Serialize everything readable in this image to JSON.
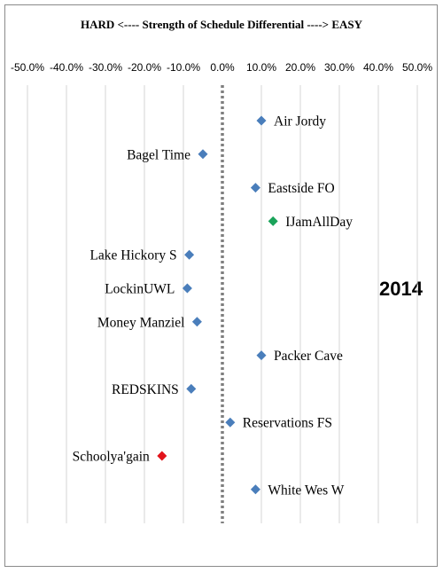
{
  "title": "HARD <----  Strength of Schedule Differential  ----> EASY",
  "year_label": "2014",
  "chart_data": {
    "type": "scatter",
    "title": "HARD <----  Strength of Schedule Differential  ----> EASY",
    "x_axis": {
      "min": -0.5,
      "max": 0.5,
      "position": "top",
      "tick_values": [
        -0.5,
        -0.4,
        -0.3,
        -0.2,
        -0.1,
        0.0,
        0.1,
        0.2,
        0.3,
        0.4,
        0.5
      ],
      "tick_labels": [
        "-50.0%",
        "-40.0%",
        "-30.0%",
        "-20.0%",
        "-10.0%",
        "0.0%",
        "10.0%",
        "20.0%",
        "30.0%",
        "40.0%",
        "50.0%"
      ],
      "vertical_gridlines": true,
      "zero_line": "dotted"
    },
    "points": [
      {
        "team": "Air Jordy",
        "value": 0.1,
        "color": "#4a7ebb",
        "label_side": "right"
      },
      {
        "team": "Bagel Time",
        "value": -0.05,
        "color": "#4a7ebb",
        "label_side": "left"
      },
      {
        "team": "Eastside FO",
        "value": 0.085,
        "color": "#4a7ebb",
        "label_side": "right"
      },
      {
        "team": "IJamAllDay",
        "value": 0.13,
        "color": "#1aa35a",
        "label_side": "right"
      },
      {
        "team": "Lake Hickory S",
        "value": -0.085,
        "color": "#4a7ebb",
        "label_side": "left"
      },
      {
        "team": "LockinUWL",
        "value": -0.09,
        "color": "#4a7ebb",
        "label_side": "left"
      },
      {
        "team": "Money Manziel",
        "value": -0.065,
        "color": "#4a7ebb",
        "label_side": "left"
      },
      {
        "team": "Packer Cave",
        "value": 0.1,
        "color": "#4a7ebb",
        "label_side": "right"
      },
      {
        "team": "REDSKINS",
        "value": -0.08,
        "color": "#4a7ebb",
        "label_side": "left"
      },
      {
        "team": "Reservations FS",
        "value": 0.02,
        "color": "#4a7ebb",
        "label_side": "right"
      },
      {
        "team": "Schoolya'gain",
        "value": -0.155,
        "color": "#e2141b",
        "label_side": "left"
      },
      {
        "team": "White Wes W",
        "value": 0.085,
        "color": "#4a7ebb",
        "label_side": "right"
      }
    ]
  }
}
